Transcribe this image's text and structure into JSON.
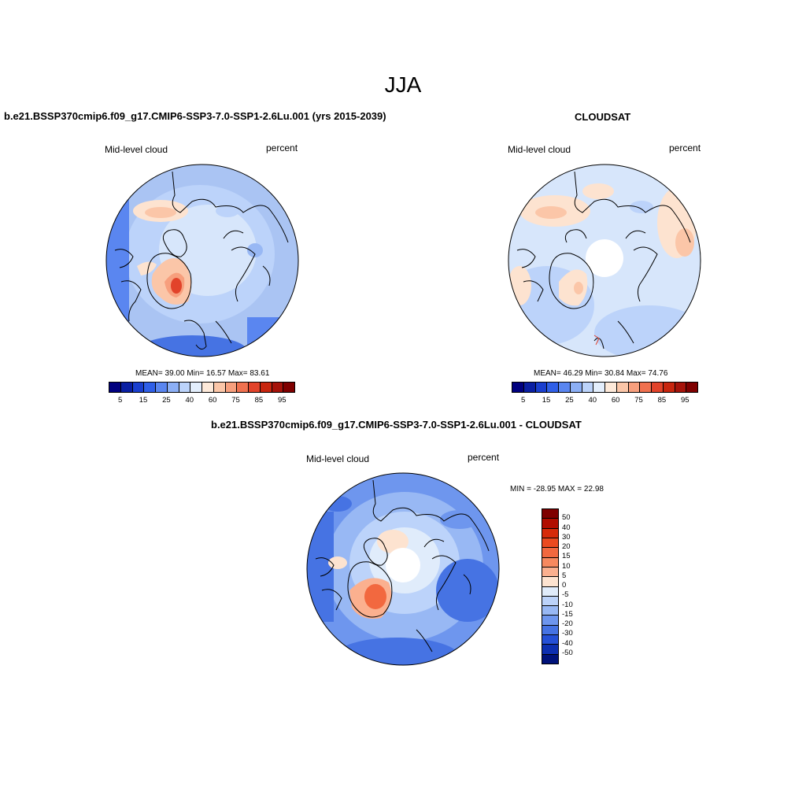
{
  "season": "JJA",
  "panels": [
    {
      "title": "b.e21.BSSP370cmip6.f09_g17.CMIP6-SSP3-7.0-SSP1-2.6Lu.001 (yrs 2015-2039)",
      "left_label": "Mid-level cloud",
      "right_label": "percent",
      "stats": "MEAN=  39.00  Min=  16.57  Max=  83.61",
      "has_pole_hole": false
    },
    {
      "title": "CLOUDSAT",
      "left_label": "Mid-level cloud",
      "right_label": "percent",
      "stats": "MEAN=  46.29  Min=  30.84  Max=  74.76",
      "has_pole_hole": true
    },
    {
      "title": "b.e21.BSSP370cmip6.f09_g17.CMIP6-SSP3-7.0-SSP1-2.6Lu.001 - CLOUDSAT",
      "left_label": "Mid-level cloud",
      "right_label": "percent",
      "stats": "MIN = -28.95 MAX =  22.98",
      "has_pole_hole": true
    }
  ],
  "abs_colorbar": {
    "colors": [
      "#00007f",
      "#0a1fa3",
      "#1a3fcf",
      "#2f5fe8",
      "#5a86f0",
      "#8caff5",
      "#bcd3fa",
      "#e3eefc",
      "#fde9d9",
      "#fbc6a8",
      "#f79f7d",
      "#f0714f",
      "#e2432a",
      "#c8260f",
      "#a6130a",
      "#7f0000"
    ],
    "ticks": [
      "5",
      "15",
      "25",
      "40",
      "60",
      "75",
      "85",
      "95"
    ]
  },
  "diff_colorbar": {
    "colors": [
      "#7f0000",
      "#b10d00",
      "#d62a0a",
      "#ea4a20",
      "#f2683f",
      "#f7895f",
      "#fbb08f",
      "#fde3d0",
      "#e0ecfb",
      "#bcd3fa",
      "#98b8f4",
      "#6e96ee",
      "#4673e3",
      "#2550d6",
      "#0d2fb0",
      "#00127a"
    ],
    "ticks": [
      "50",
      "40",
      "30",
      "20",
      "15",
      "10",
      "5",
      "0",
      "-5",
      "-10",
      "-15",
      "-20",
      "-30",
      "-40",
      "-50"
    ]
  },
  "map_colors": {
    "background_blue": "#aac4f3",
    "light_blue": "#d7e6fb",
    "mid_blue": "#5a86f0",
    "warm_light": "#fde3d0",
    "warm_mid": "#f7a07d",
    "warm_strong": "#e2432a"
  }
}
